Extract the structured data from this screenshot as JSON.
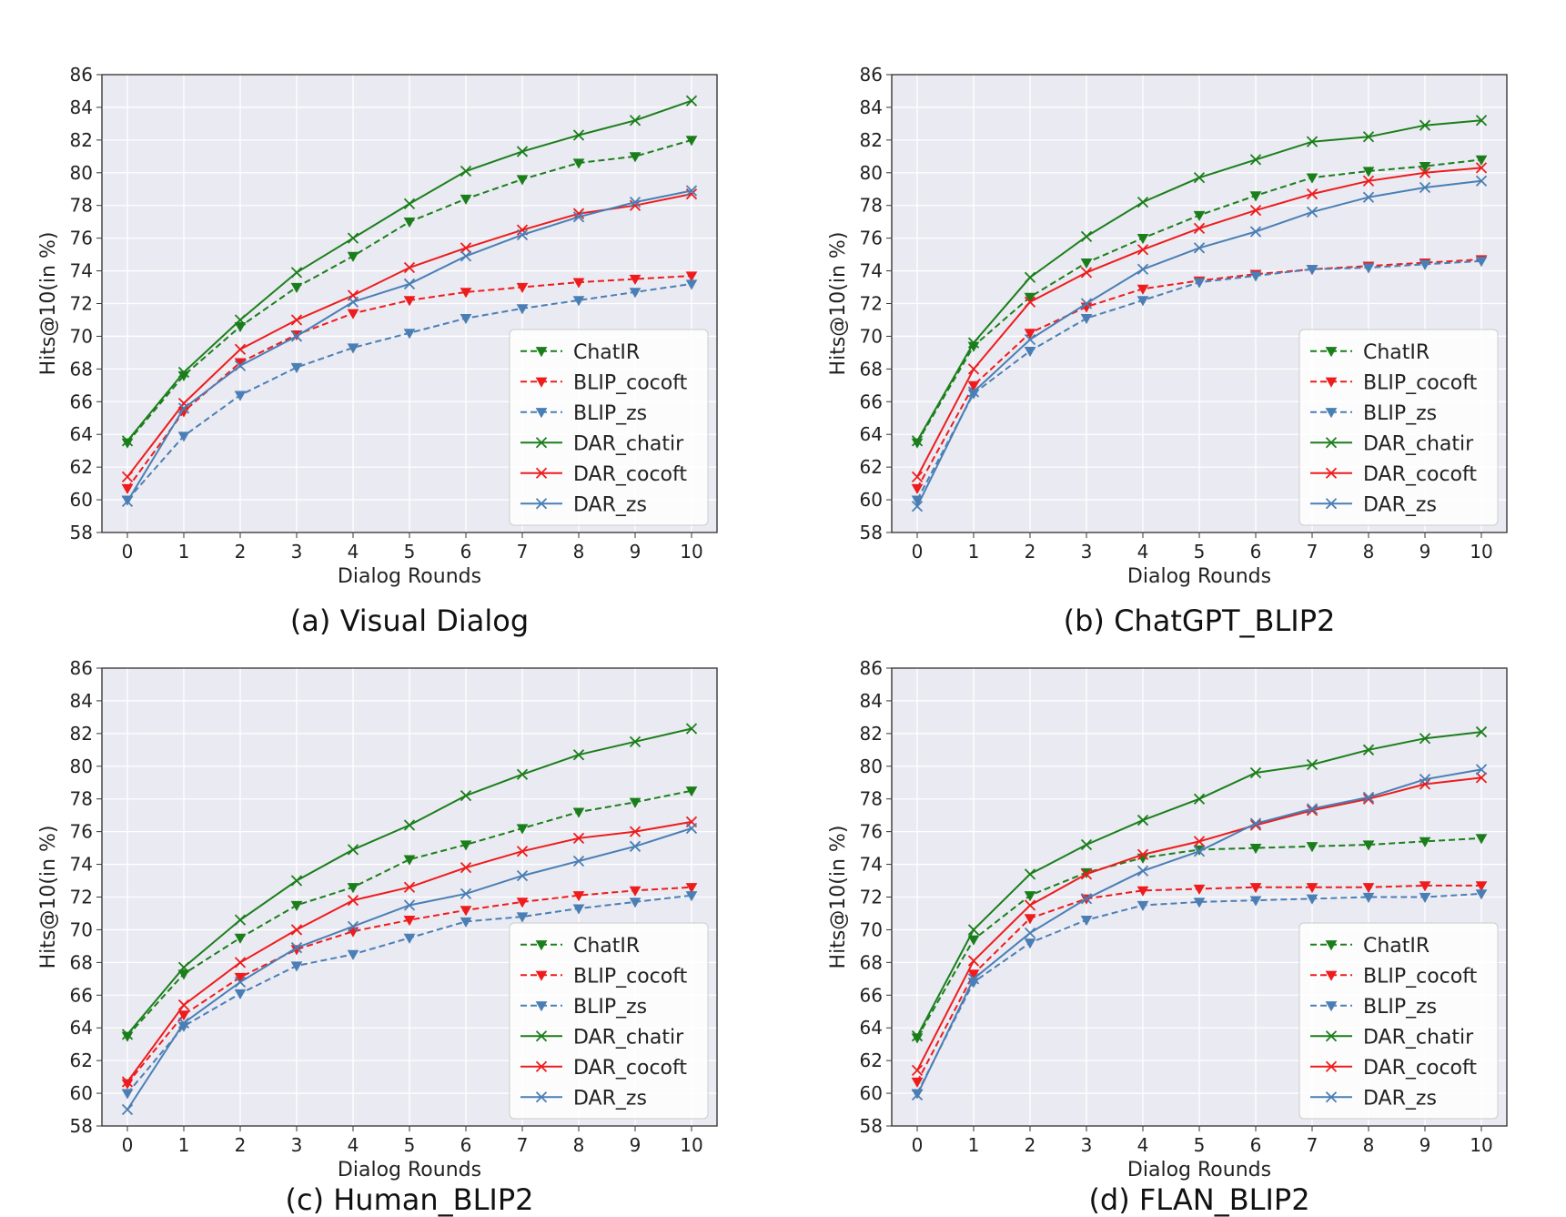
{
  "colors": {
    "green": "#1a7f1a",
    "red": "#ee1c1c",
    "blue": "#4a7fb5",
    "plot_bg": "#eaeaf2",
    "grid": "#ffffff"
  },
  "chart_data": [
    {
      "type": "line",
      "caption": "(a)  Visual Dialog",
      "xlabel": "Dialog Rounds",
      "ylabel": "Hits@10(in %)",
      "x": [
        0,
        1,
        2,
        3,
        4,
        5,
        6,
        7,
        8,
        9,
        10
      ],
      "xticks": [
        "0",
        "1",
        "2",
        "3",
        "4",
        "5",
        "6",
        "7",
        "8",
        "9",
        "10"
      ],
      "yticks": [
        "58",
        "60",
        "62",
        "64",
        "66",
        "68",
        "70",
        "72",
        "74",
        "76",
        "78",
        "80",
        "82",
        "84",
        "86"
      ],
      "ylim": [
        58,
        86
      ],
      "legend_position": "lower-right",
      "series": [
        {
          "name": "ChatIR",
          "color": "green",
          "dash": true,
          "marker": "triangle-down",
          "values": [
            63.5,
            67.6,
            70.6,
            73.0,
            74.9,
            77.0,
            78.4,
            79.6,
            80.6,
            81.0,
            82.0
          ]
        },
        {
          "name": "BLIP_cocoft",
          "color": "red",
          "dash": true,
          "marker": "triangle-down",
          "values": [
            60.7,
            65.4,
            68.4,
            70.1,
            71.4,
            72.2,
            72.7,
            73.0,
            73.3,
            73.5,
            73.7
          ]
        },
        {
          "name": "BLIP_zs",
          "color": "blue",
          "dash": true,
          "marker": "triangle-down",
          "values": [
            60.0,
            63.9,
            66.4,
            68.1,
            69.3,
            70.2,
            71.1,
            71.7,
            72.2,
            72.7,
            73.2
          ]
        },
        {
          "name": "DAR_chatir",
          "color": "green",
          "dash": false,
          "marker": "x",
          "values": [
            63.6,
            67.8,
            71.0,
            73.9,
            76.0,
            78.1,
            80.1,
            81.3,
            82.3,
            83.2,
            84.4
          ]
        },
        {
          "name": "DAR_cocoft",
          "color": "red",
          "dash": false,
          "marker": "x",
          "values": [
            61.4,
            65.9,
            69.2,
            71.0,
            72.5,
            74.2,
            75.4,
            76.5,
            77.5,
            78.0,
            78.7
          ]
        },
        {
          "name": "DAR_zs",
          "color": "blue",
          "dash": false,
          "marker": "x",
          "values": [
            59.9,
            65.6,
            68.2,
            70.0,
            72.1,
            73.2,
            74.9,
            76.2,
            77.3,
            78.2,
            78.9
          ]
        }
      ]
    },
    {
      "type": "line",
      "caption": "(b) ChatGPT_BLIP2",
      "xlabel": "Dialog Rounds",
      "ylabel": "Hits@10(in %)",
      "x": [
        0,
        1,
        2,
        3,
        4,
        5,
        6,
        7,
        8,
        9,
        10
      ],
      "xticks": [
        "0",
        "1",
        "2",
        "3",
        "4",
        "5",
        "6",
        "7",
        "8",
        "9",
        "10"
      ],
      "yticks": [
        "58",
        "60",
        "62",
        "64",
        "66",
        "68",
        "70",
        "72",
        "74",
        "76",
        "78",
        "80",
        "82",
        "84",
        "86"
      ],
      "ylim": [
        58,
        86
      ],
      "legend_position": "lower-right",
      "series": [
        {
          "name": "ChatIR",
          "color": "green",
          "dash": true,
          "marker": "triangle-down",
          "values": [
            63.5,
            69.4,
            72.4,
            74.5,
            76.0,
            77.4,
            78.6,
            79.7,
            80.1,
            80.4,
            80.8
          ]
        },
        {
          "name": "BLIP_cocoft",
          "color": "red",
          "dash": true,
          "marker": "triangle-down",
          "values": [
            60.7,
            67.0,
            70.2,
            71.8,
            72.9,
            73.4,
            73.8,
            74.1,
            74.3,
            74.5,
            74.7
          ]
        },
        {
          "name": "BLIP_zs",
          "color": "blue",
          "dash": true,
          "marker": "triangle-down",
          "values": [
            60.0,
            66.5,
            69.1,
            71.1,
            72.2,
            73.3,
            73.7,
            74.1,
            74.2,
            74.4,
            74.6
          ]
        },
        {
          "name": "DAR_chatir",
          "color": "green",
          "dash": false,
          "marker": "x",
          "values": [
            63.6,
            69.6,
            73.6,
            76.1,
            78.2,
            79.7,
            80.8,
            81.9,
            82.2,
            82.9,
            83.2
          ]
        },
        {
          "name": "DAR_cocoft",
          "color": "red",
          "dash": false,
          "marker": "x",
          "values": [
            61.4,
            68.0,
            72.1,
            73.9,
            75.3,
            76.6,
            77.7,
            78.7,
            79.5,
            80.0,
            80.3
          ]
        },
        {
          "name": "DAR_zs",
          "color": "blue",
          "dash": false,
          "marker": "x",
          "values": [
            59.6,
            66.6,
            69.8,
            72.0,
            74.1,
            75.4,
            76.4,
            77.6,
            78.5,
            79.1,
            79.5
          ]
        }
      ]
    },
    {
      "type": "line",
      "caption": "(c)  Human_BLIP2",
      "xlabel": "Dialog Rounds",
      "ylabel": "Hits@10(in %)",
      "x": [
        0,
        1,
        2,
        3,
        4,
        5,
        6,
        7,
        8,
        9,
        10
      ],
      "xticks": [
        "0",
        "1",
        "2",
        "3",
        "4",
        "5",
        "6",
        "7",
        "8",
        "9",
        "10"
      ],
      "yticks": [
        "58",
        "60",
        "62",
        "64",
        "66",
        "68",
        "70",
        "72",
        "74",
        "76",
        "78",
        "80",
        "82",
        "84",
        "86"
      ],
      "ylim": [
        58,
        86
      ],
      "legend_position": "lower-right",
      "series": [
        {
          "name": "ChatIR",
          "color": "green",
          "dash": true,
          "marker": "triangle-down",
          "values": [
            63.5,
            67.3,
            69.5,
            71.5,
            72.6,
            74.3,
            75.2,
            76.2,
            77.2,
            77.8,
            78.5
          ]
        },
        {
          "name": "BLIP_cocoft",
          "color": "red",
          "dash": true,
          "marker": "triangle-down",
          "values": [
            60.6,
            64.8,
            67.1,
            68.8,
            69.9,
            70.6,
            71.2,
            71.7,
            72.1,
            72.4,
            72.6
          ]
        },
        {
          "name": "BLIP_zs",
          "color": "blue",
          "dash": true,
          "marker": "triangle-down",
          "values": [
            60.0,
            64.1,
            66.1,
            67.8,
            68.5,
            69.5,
            70.5,
            70.8,
            71.3,
            71.7,
            72.1
          ]
        },
        {
          "name": "DAR_chatir",
          "color": "green",
          "dash": false,
          "marker": "x",
          "values": [
            63.6,
            67.7,
            70.6,
            73.0,
            74.9,
            76.4,
            78.2,
            79.5,
            80.7,
            81.5,
            82.3
          ]
        },
        {
          "name": "DAR_cocoft",
          "color": "red",
          "dash": false,
          "marker": "x",
          "values": [
            60.7,
            65.4,
            68.0,
            70.0,
            71.8,
            72.6,
            73.8,
            74.8,
            75.6,
            76.0,
            76.6
          ]
        },
        {
          "name": "DAR_zs",
          "color": "blue",
          "dash": false,
          "marker": "x",
          "values": [
            59.0,
            64.3,
            66.8,
            68.9,
            70.2,
            71.5,
            72.2,
            73.3,
            74.2,
            75.1,
            76.2
          ]
        }
      ]
    },
    {
      "type": "line",
      "caption": "(d) FLAN_BLIP2",
      "xlabel": "Dialog Rounds",
      "ylabel": "Hits@10(in %)",
      "x": [
        0,
        1,
        2,
        3,
        4,
        5,
        6,
        7,
        8,
        9,
        10
      ],
      "xticks": [
        "0",
        "1",
        "2",
        "3",
        "4",
        "5",
        "6",
        "7",
        "8",
        "9",
        "10"
      ],
      "yticks": [
        "58",
        "60",
        "62",
        "64",
        "66",
        "68",
        "70",
        "72",
        "74",
        "76",
        "78",
        "80",
        "82",
        "84",
        "86"
      ],
      "ylim": [
        58,
        86
      ],
      "legend_position": "lower-right",
      "series": [
        {
          "name": "ChatIR",
          "color": "green",
          "dash": true,
          "marker": "triangle-down",
          "values": [
            63.4,
            69.4,
            72.1,
            73.5,
            74.4,
            74.9,
            75.0,
            75.1,
            75.2,
            75.4,
            75.6
          ]
        },
        {
          "name": "BLIP_cocoft",
          "color": "red",
          "dash": true,
          "marker": "triangle-down",
          "values": [
            60.7,
            67.3,
            70.7,
            71.9,
            72.4,
            72.5,
            72.6,
            72.6,
            72.6,
            72.7,
            72.7
          ]
        },
        {
          "name": "BLIP_zs",
          "color": "blue",
          "dash": true,
          "marker": "triangle-down",
          "values": [
            60.0,
            66.8,
            69.2,
            70.6,
            71.5,
            71.7,
            71.8,
            71.9,
            72.0,
            72.0,
            72.2
          ]
        },
        {
          "name": "DAR_chatir",
          "color": "green",
          "dash": false,
          "marker": "x",
          "values": [
            63.5,
            70.0,
            73.4,
            75.2,
            76.7,
            78.0,
            79.6,
            80.1,
            81.0,
            81.7,
            82.1
          ]
        },
        {
          "name": "DAR_cocoft",
          "color": "red",
          "dash": false,
          "marker": "x",
          "values": [
            61.4,
            68.1,
            71.5,
            73.4,
            74.6,
            75.4,
            76.4,
            77.3,
            78.0,
            78.9,
            79.3
          ]
        },
        {
          "name": "DAR_zs",
          "color": "blue",
          "dash": false,
          "marker": "x",
          "values": [
            59.9,
            67.0,
            69.8,
            71.9,
            73.6,
            74.8,
            76.5,
            77.4,
            78.1,
            79.2,
            79.8
          ]
        }
      ]
    }
  ]
}
